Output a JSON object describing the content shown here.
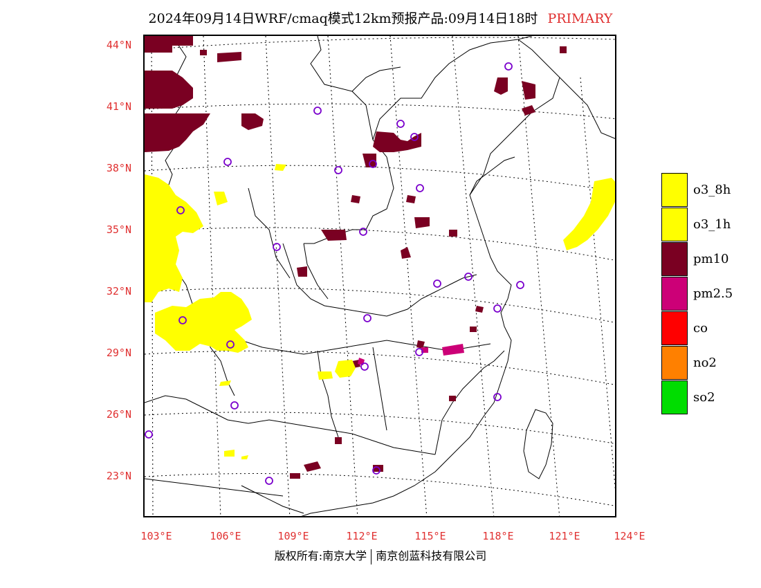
{
  "title": {
    "main": "2024年09月14日WRF/cmaq模式12km预报产品:09月14日18时",
    "tag": "PRIMARY"
  },
  "axes": {
    "latitudes": [
      "44°N",
      "41°N",
      "38°N",
      "35°N",
      "32°N",
      "29°N",
      "26°N",
      "23°N"
    ],
    "longitudes": [
      "103°E",
      "106°E",
      "109°E",
      "112°E",
      "115°E",
      "118°E",
      "121°E",
      "124°E"
    ]
  },
  "legend": [
    {
      "label": "o3_8h",
      "color": "#ffff00"
    },
    {
      "label": "o3_1h",
      "color": "#ffff00"
    },
    {
      "label": "pm10",
      "color": "#7a0022"
    },
    {
      "label": "pm2.5",
      "color": "#cc0077"
    },
    {
      "label": "co",
      "color": "#ff0000"
    },
    {
      "label": "no2",
      "color": "#ff8000"
    },
    {
      "label": "so2",
      "color": "#00dd00"
    }
  ],
  "credit": {
    "left": "版权所有:南京大学",
    "right": "南京创蓝科技有限公司"
  },
  "colors": {
    "label_red": "#e03030",
    "station_marker": "#7a00cc",
    "boundary": "#000000"
  }
}
